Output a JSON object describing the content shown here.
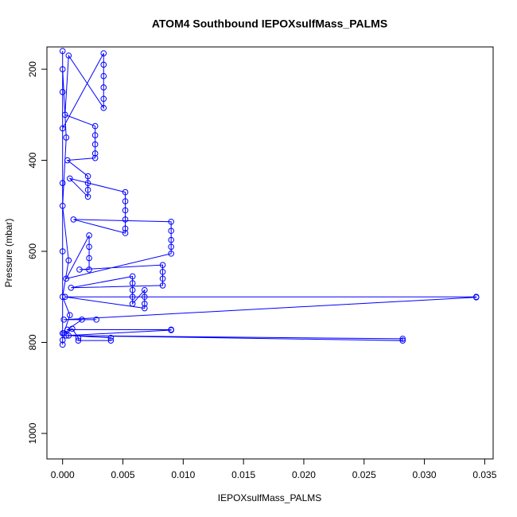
{
  "chart_data": {
    "type": "scatter-line",
    "title": "ATOM4 Southbound IEPOXsulfMass_PALMS",
    "x_label": "IEPOXsulfMass_PALMS",
    "y_label": "Pressure (mbar)",
    "color": "#0000ff",
    "x": [
      0,
      0,
      0,
      0.0034,
      0.0034,
      0.0034,
      0.0034,
      0.0034,
      0.0034,
      0.0005,
      0.0002,
      0.0027,
      0.0027,
      0.0027,
      0.0027,
      0.0027,
      0.0004,
      0.0021,
      0.0021,
      0.0021,
      0.0021,
      0.0006,
      0.0052,
      0.0052,
      0.0052,
      0.0052,
      0.0052,
      0.0052,
      0.0009,
      0.009,
      0.009,
      0.009,
      0.009,
      0.009,
      0.0003,
      0.0022,
      0.0022,
      0.0022,
      0.0022,
      0.0014,
      0.0083,
      0.0083,
      0.0083,
      0.0083,
      0.0007,
      0.0058,
      0.0058,
      0.0058,
      0.0058,
      0.0058,
      0.0068,
      0.0068,
      0.0068,
      0.0068,
      0.0002,
      0.0343,
      0.0343,
      0.0001,
      0.0028,
      0.0016,
      0.0004,
      0.009,
      0.009,
      0.0003,
      0.0282,
      0.0282,
      0.0005,
      0.004,
      0.004,
      0.0013,
      0.0013,
      0.0008,
      0,
      0,
      0,
      0,
      0,
      0,
      0.0003,
      0,
      0.0005,
      0,
      0.0006,
      0.0001
    ],
    "values": [
      160,
      250,
      330,
      165,
      190,
      215,
      240,
      265,
      285,
      170,
      300,
      325,
      345,
      365,
      385,
      395,
      400,
      435,
      450,
      465,
      480,
      440,
      470,
      490,
      510,
      530,
      550,
      560,
      530,
      535,
      555,
      575,
      590,
      605,
      660,
      565,
      590,
      615,
      640,
      640,
      630,
      645,
      660,
      675,
      680,
      655,
      670,
      685,
      700,
      715,
      685,
      700,
      715,
      725,
      700,
      700,
      701,
      750,
      750,
      750,
      772,
      772,
      773,
      785,
      792,
      796,
      785,
      790,
      796,
      796,
      790,
      770,
      780,
      795,
      805,
      600,
      450,
      200,
      350,
      500,
      620,
      700,
      740,
      780
    ],
    "xlim": [
      -0.0013,
      0.0357
    ],
    "ylim": [
      1056,
      151
    ],
    "xticks": [
      {
        "value": 0,
        "label": "0.000"
      },
      {
        "value": 0.005,
        "label": "0.005"
      },
      {
        "value": 0.01,
        "label": "0.010"
      },
      {
        "value": 0.015,
        "label": "0.015"
      },
      {
        "value": 0.02,
        "label": "0.020"
      },
      {
        "value": 0.025,
        "label": "0.025"
      },
      {
        "value": 0.03,
        "label": "0.030"
      },
      {
        "value": 0.035,
        "label": "0.035"
      }
    ],
    "yticks": [
      200,
      400,
      600,
      800,
      1000
    ]
  }
}
